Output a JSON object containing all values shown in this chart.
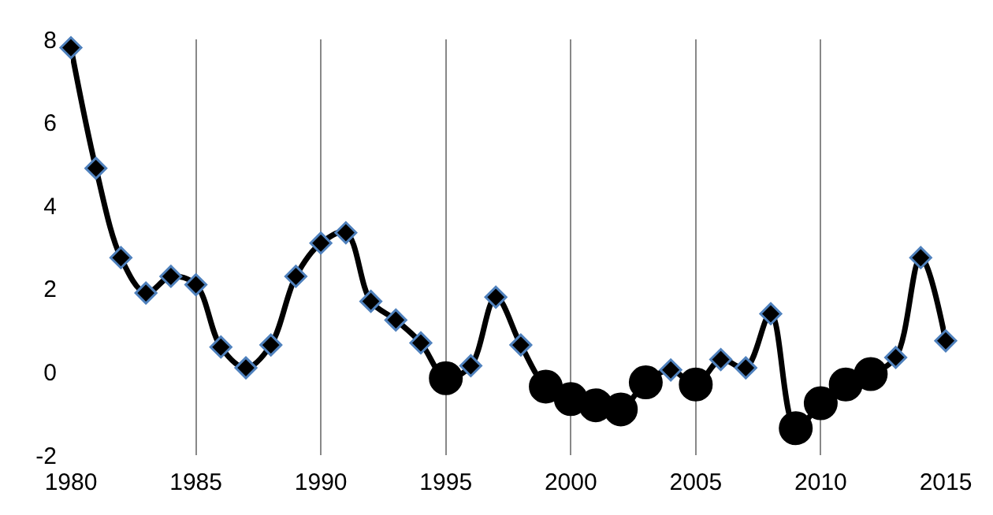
{
  "chart_data": {
    "type": "line",
    "x": [
      1980,
      1981,
      1982,
      1983,
      1984,
      1985,
      1986,
      1987,
      1988,
      1989,
      1990,
      1991,
      1992,
      1993,
      1994,
      1995,
      1996,
      1997,
      1998,
      1999,
      2000,
      2001,
      2002,
      2003,
      2004,
      2005,
      2006,
      2007,
      2008,
      2009,
      2010,
      2011,
      2012,
      2013,
      2014,
      2015
    ],
    "series": [
      {
        "color": "#000000",
        "marker": "none",
        "values": [
          7.8,
          4.9,
          2.75,
          1.9,
          2.3,
          2.1,
          0.6,
          0.1,
          0.65,
          2.3,
          3.1,
          3.35,
          1.7,
          1.25,
          0.7,
          -0.15,
          0.15,
          1.8,
          0.65,
          -0.35,
          -0.65,
          -0.8,
          -0.9,
          -0.25,
          0.05,
          -0.3,
          0.3,
          0.1,
          1.4,
          -1.35,
          -0.75,
          -0.3,
          -0.05,
          0.35,
          2.75,
          0.75
        ]
      },
      {
        "type": "scatter",
        "color": "#000000",
        "marker": "diamond",
        "values": [
          7.8,
          4.9,
          2.75,
          1.9,
          2.3,
          2.1,
          0.6,
          0.1,
          0.65,
          2.3,
          3.1,
          3.35,
          1.7,
          1.25,
          0.7,
          null,
          0.15,
          1.8,
          0.65,
          null,
          null,
          null,
          null,
          null,
          0.05,
          null,
          0.3,
          0.1,
          1.4,
          null,
          null,
          null,
          null,
          0.35,
          2.75,
          0.75
        ]
      },
      {
        "type": "scatter",
        "color": "#000000",
        "marker": "circle",
        "values": [
          null,
          null,
          null,
          null,
          null,
          null,
          null,
          null,
          null,
          null,
          null,
          null,
          null,
          null,
          null,
          -0.15,
          null,
          null,
          null,
          -0.35,
          -0.65,
          -0.8,
          -0.9,
          -0.25,
          null,
          -0.3,
          null,
          null,
          null,
          -1.35,
          -0.75,
          -0.3,
          -0.05,
          null,
          null,
          null
        ]
      }
    ],
    "xlim": [
      1980,
      2015
    ],
    "xticks": [
      1980,
      1985,
      1990,
      1995,
      2000,
      2005,
      2010,
      2015
    ],
    "ylim": [
      -2,
      8
    ],
    "yticks": [
      -2,
      0,
      2,
      4,
      6,
      8
    ],
    "grid": "x"
  }
}
